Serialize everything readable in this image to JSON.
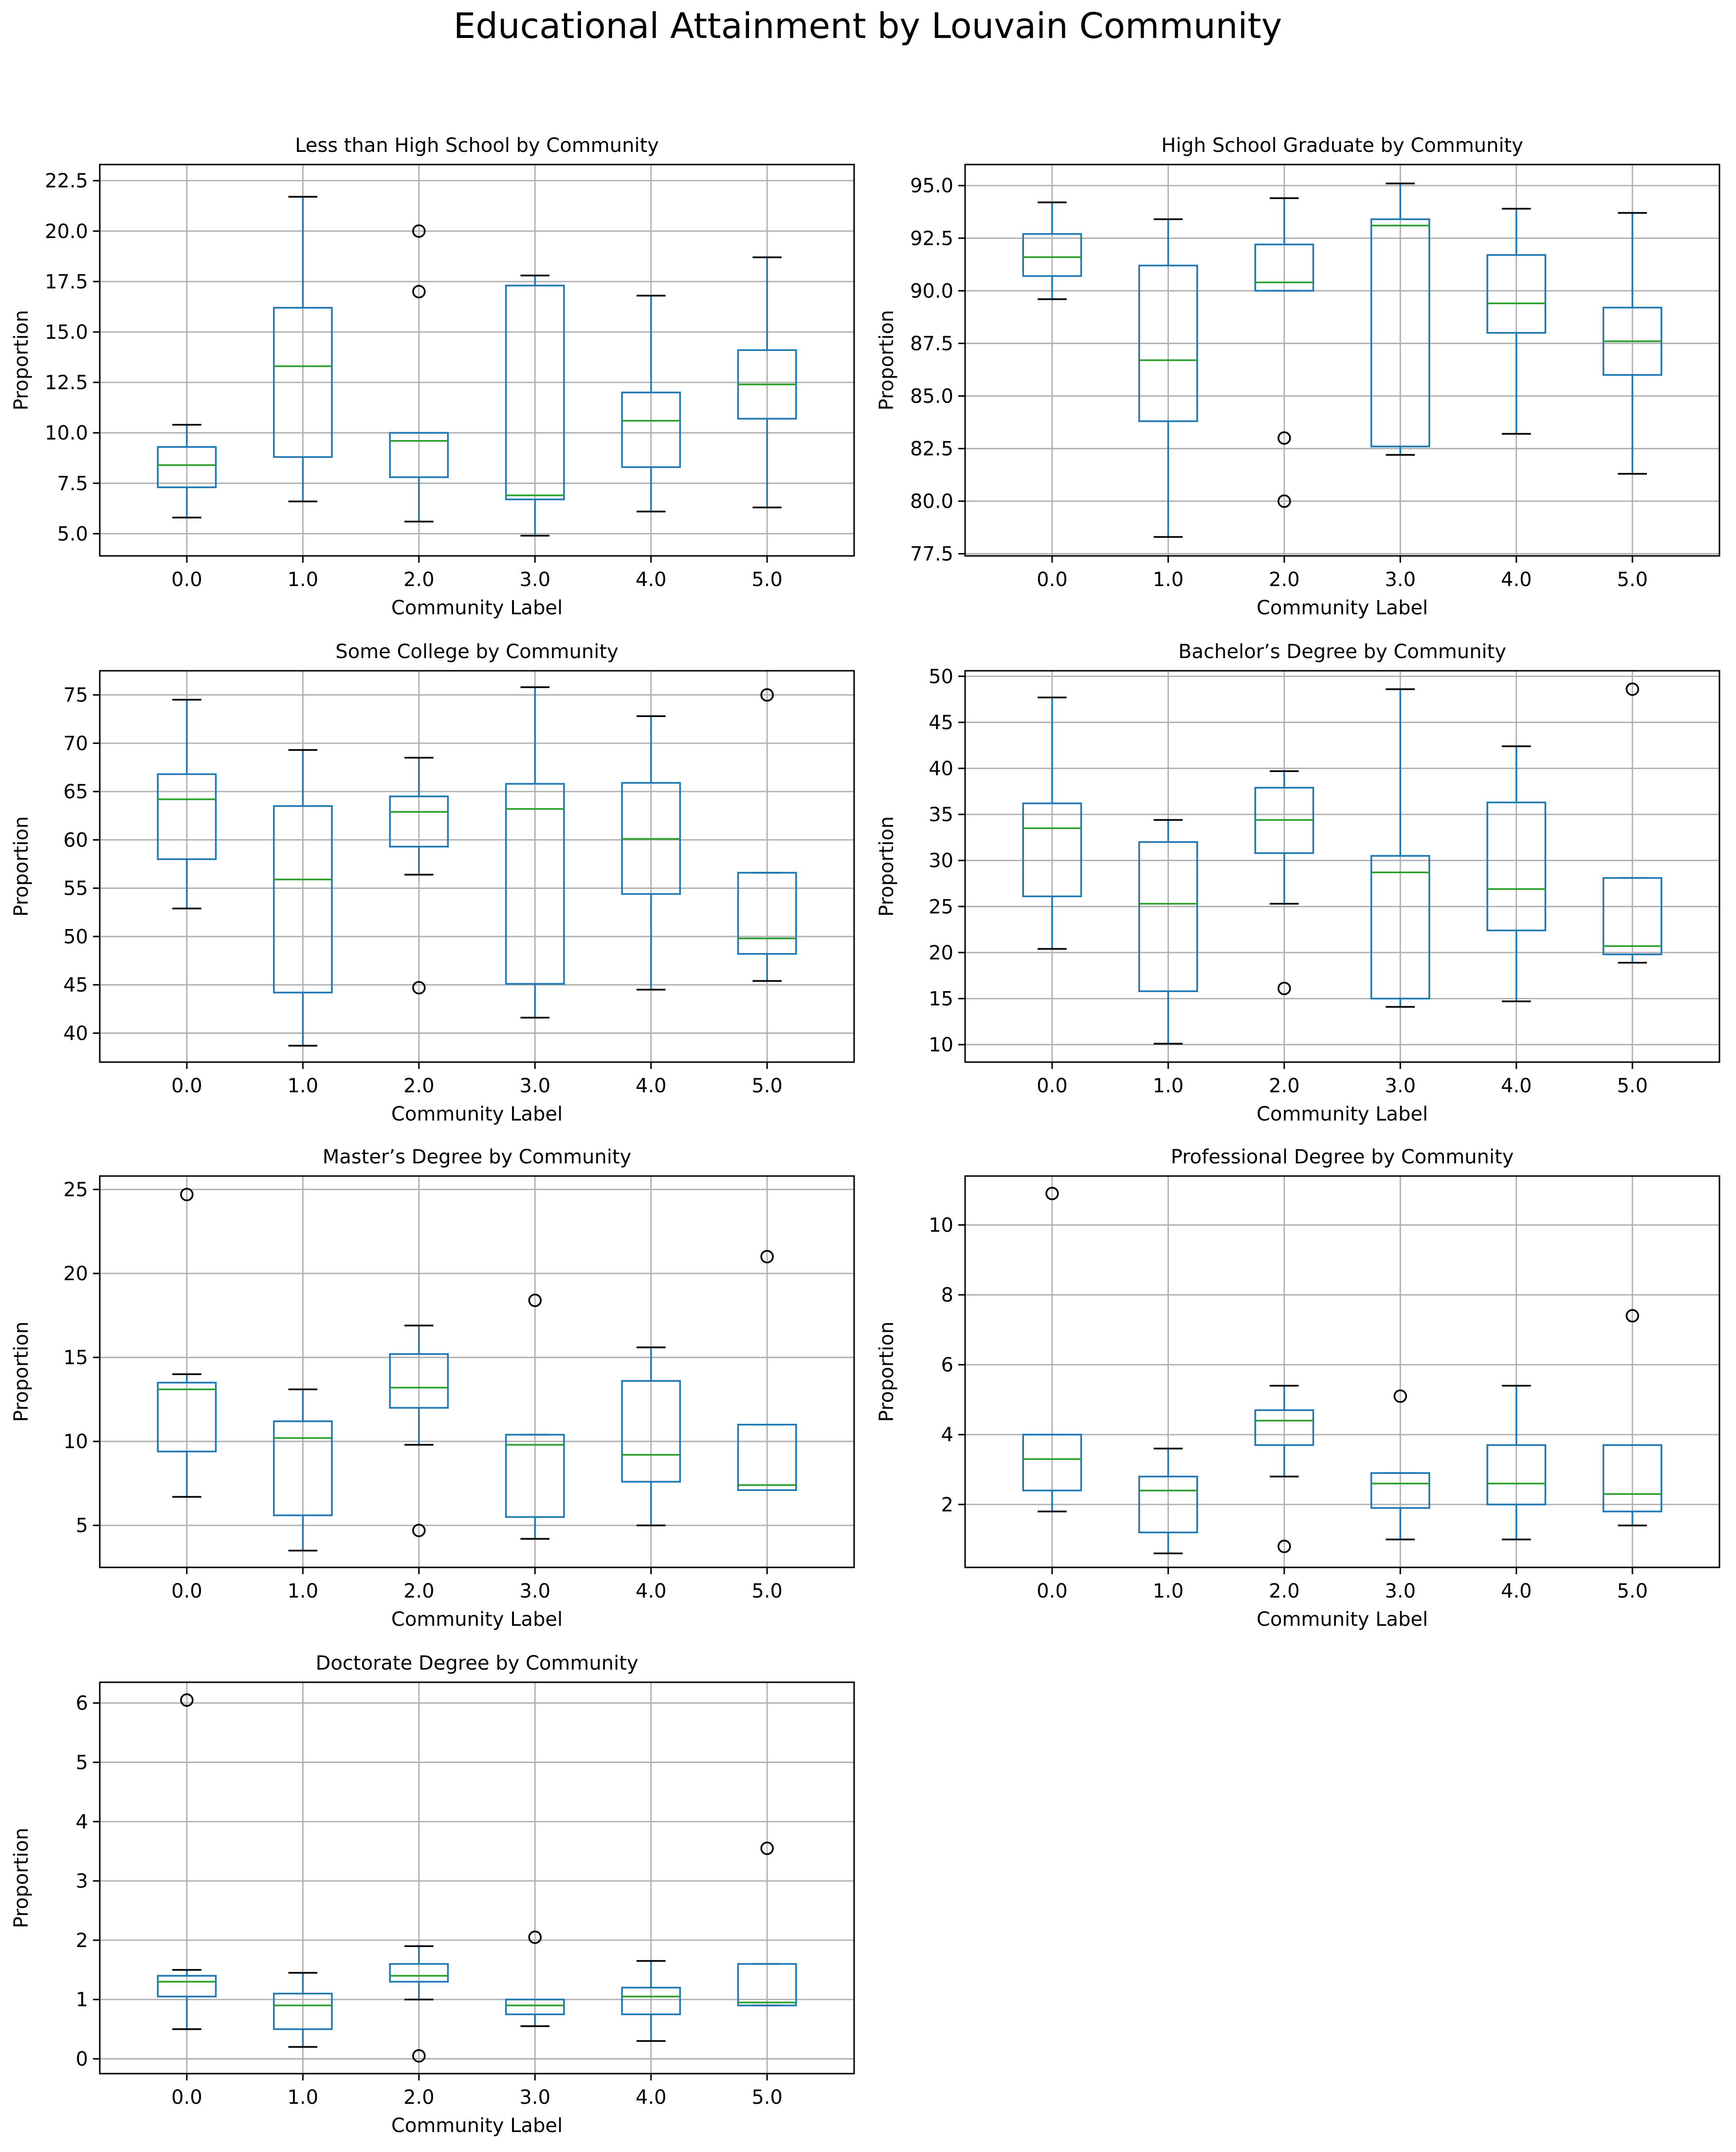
{
  "title": "Educational Attainment by Louvain Community",
  "colors": {
    "box": "#1f77b4",
    "median": "#2ca02c",
    "whisker": "#000000",
    "grid": "#b0b0b0",
    "axis": "#000000"
  },
  "chart_data": [
    {
      "type": "boxplot",
      "title": "Less than High School by Community",
      "xlabel": "Community Label",
      "ylabel": "Proportion",
      "categories": [
        "0.0",
        "1.0",
        "2.0",
        "3.0",
        "4.0",
        "5.0"
      ],
      "ylim": [
        3.9,
        23.3
      ],
      "yticks": [
        5.0,
        7.5,
        10.0,
        12.5,
        15.0,
        17.5,
        20.0,
        22.5
      ],
      "ytick_labels": [
        "5.0",
        "7.5",
        "10.0",
        "12.5",
        "15.0",
        "17.5",
        "20.0",
        "22.5"
      ],
      "grid": true,
      "boxes": [
        {
          "whislo": 5.8,
          "q1": 7.3,
          "med": 8.4,
          "q3": 9.3,
          "whishi": 10.4,
          "fliers": []
        },
        {
          "whislo": 6.6,
          "q1": 8.8,
          "med": 13.3,
          "q3": 16.2,
          "whishi": 21.7,
          "fliers": []
        },
        {
          "whislo": 5.6,
          "q1": 7.8,
          "med": 9.6,
          "q3": 10.0,
          "whishi": 10.0,
          "fliers": [
            17.0,
            20.0
          ]
        },
        {
          "whislo": 4.9,
          "q1": 6.7,
          "med": 6.9,
          "q3": 17.3,
          "whishi": 17.8,
          "fliers": []
        },
        {
          "whislo": 6.1,
          "q1": 8.3,
          "med": 10.6,
          "q3": 12.0,
          "whishi": 16.8,
          "fliers": []
        },
        {
          "whislo": 6.3,
          "q1": 10.7,
          "med": 12.4,
          "q3": 14.1,
          "whishi": 18.7,
          "fliers": []
        }
      ]
    },
    {
      "type": "boxplot",
      "title": "High School Graduate by Community",
      "xlabel": "Community Label",
      "ylabel": "Proportion",
      "categories": [
        "0.0",
        "1.0",
        "2.0",
        "3.0",
        "4.0",
        "5.0"
      ],
      "ylim": [
        77.4,
        96.0
      ],
      "yticks": [
        77.5,
        80.0,
        82.5,
        85.0,
        87.5,
        90.0,
        92.5,
        95.0
      ],
      "ytick_labels": [
        "77.5",
        "80.0",
        "82.5",
        "85.0",
        "87.5",
        "90.0",
        "92.5",
        "95.0"
      ],
      "grid": true,
      "boxes": [
        {
          "whislo": 89.6,
          "q1": 90.7,
          "med": 91.6,
          "q3": 92.7,
          "whishi": 94.2,
          "fliers": []
        },
        {
          "whislo": 78.3,
          "q1": 83.8,
          "med": 86.7,
          "q3": 91.2,
          "whishi": 93.4,
          "fliers": []
        },
        {
          "whislo": 90.0,
          "q1": 90.0,
          "med": 90.4,
          "q3": 92.2,
          "whishi": 94.4,
          "fliers": [
            80.0,
            83.0
          ]
        },
        {
          "whislo": 82.2,
          "q1": 82.6,
          "med": 93.1,
          "q3": 93.4,
          "whishi": 95.1,
          "fliers": []
        },
        {
          "whislo": 83.2,
          "q1": 88.0,
          "med": 89.4,
          "q3": 91.7,
          "whishi": 93.9,
          "fliers": []
        },
        {
          "whislo": 81.3,
          "q1": 86.0,
          "med": 87.6,
          "q3": 89.2,
          "whishi": 93.7,
          "fliers": []
        }
      ]
    },
    {
      "type": "boxplot",
      "title": "Some College by Community",
      "xlabel": "Community Label",
      "ylabel": "Proportion",
      "categories": [
        "0.0",
        "1.0",
        "2.0",
        "3.0",
        "4.0",
        "5.0"
      ],
      "ylim": [
        37.0,
        77.5
      ],
      "yticks": [
        40,
        45,
        50,
        55,
        60,
        65,
        70,
        75
      ],
      "ytick_labels": [
        "40",
        "45",
        "50",
        "55",
        "60",
        "65",
        "70",
        "75"
      ],
      "grid": true,
      "boxes": [
        {
          "whislo": 52.9,
          "q1": 58.0,
          "med": 64.2,
          "q3": 66.8,
          "whishi": 74.5,
          "fliers": []
        },
        {
          "whislo": 38.7,
          "q1": 44.2,
          "med": 55.9,
          "q3": 63.5,
          "whishi": 69.3,
          "fliers": []
        },
        {
          "whislo": 56.4,
          "q1": 59.3,
          "med": 62.9,
          "q3": 64.5,
          "whishi": 68.5,
          "fliers": [
            44.7
          ]
        },
        {
          "whislo": 41.6,
          "q1": 45.1,
          "med": 63.2,
          "q3": 65.8,
          "whishi": 75.8,
          "fliers": []
        },
        {
          "whislo": 44.5,
          "q1": 54.4,
          "med": 60.1,
          "q3": 65.9,
          "whishi": 72.8,
          "fliers": []
        },
        {
          "whislo": 45.4,
          "q1": 48.2,
          "med": 49.8,
          "q3": 56.6,
          "whishi": 56.6,
          "fliers": [
            75.0
          ]
        }
      ]
    },
    {
      "type": "boxplot",
      "title": "Bachelor’s Degree by Community",
      "xlabel": "Community Label",
      "ylabel": "Proportion",
      "categories": [
        "0.0",
        "1.0",
        "2.0",
        "3.0",
        "4.0",
        "5.0"
      ],
      "ylim": [
        8.1,
        50.6
      ],
      "yticks": [
        10,
        15,
        20,
        25,
        30,
        35,
        40,
        45,
        50
      ],
      "ytick_labels": [
        "10",
        "15",
        "20",
        "25",
        "30",
        "35",
        "40",
        "45",
        "50"
      ],
      "grid": true,
      "boxes": [
        {
          "whislo": 20.4,
          "q1": 26.1,
          "med": 33.5,
          "q3": 36.2,
          "whishi": 47.7,
          "fliers": []
        },
        {
          "whislo": 10.1,
          "q1": 15.8,
          "med": 25.3,
          "q3": 32.0,
          "whishi": 34.4,
          "fliers": []
        },
        {
          "whislo": 25.3,
          "q1": 30.8,
          "med": 34.4,
          "q3": 37.9,
          "whishi": 39.7,
          "fliers": [
            16.1
          ]
        },
        {
          "whislo": 14.1,
          "q1": 15.0,
          "med": 28.7,
          "q3": 30.5,
          "whishi": 48.6,
          "fliers": []
        },
        {
          "whislo": 14.7,
          "q1": 22.4,
          "med": 26.9,
          "q3": 36.3,
          "whishi": 42.4,
          "fliers": []
        },
        {
          "whislo": 18.9,
          "q1": 19.8,
          "med": 20.7,
          "q3": 28.1,
          "whishi": 28.1,
          "fliers": [
            48.6
          ]
        }
      ]
    },
    {
      "type": "boxplot",
      "title": "Master’s Degree by Community",
      "xlabel": "Community Label",
      "ylabel": "Proportion",
      "categories": [
        "0.0",
        "1.0",
        "2.0",
        "3.0",
        "4.0",
        "5.0"
      ],
      "ylim": [
        2.5,
        25.8
      ],
      "yticks": [
        5,
        10,
        15,
        20,
        25
      ],
      "ytick_labels": [
        "5",
        "10",
        "15",
        "20",
        "25"
      ],
      "grid": true,
      "boxes": [
        {
          "whislo": 6.7,
          "q1": 9.4,
          "med": 13.1,
          "q3": 13.5,
          "whishi": 14.0,
          "fliers": [
            24.7
          ]
        },
        {
          "whislo": 3.5,
          "q1": 5.6,
          "med": 10.2,
          "q3": 11.2,
          "whishi": 13.1,
          "fliers": []
        },
        {
          "whislo": 9.8,
          "q1": 12.0,
          "med": 13.2,
          "q3": 15.2,
          "whishi": 16.9,
          "fliers": [
            4.7
          ]
        },
        {
          "whislo": 4.2,
          "q1": 5.5,
          "med": 9.8,
          "q3": 10.4,
          "whishi": 10.4,
          "fliers": [
            18.4
          ]
        },
        {
          "whislo": 5.0,
          "q1": 7.6,
          "med": 9.2,
          "q3": 13.6,
          "whishi": 15.6,
          "fliers": []
        },
        {
          "whislo": 7.1,
          "q1": 7.1,
          "med": 7.4,
          "q3": 11.0,
          "whishi": 11.0,
          "fliers": [
            21.0
          ]
        }
      ]
    },
    {
      "type": "boxplot",
      "title": "Professional Degree by Community",
      "xlabel": "Community Label",
      "ylabel": "Proportion",
      "categories": [
        "0.0",
        "1.0",
        "2.0",
        "3.0",
        "4.0",
        "5.0"
      ],
      "ylim": [
        0.2,
        11.4
      ],
      "yticks": [
        2,
        4,
        6,
        8,
        10
      ],
      "ytick_labels": [
        "2",
        "4",
        "6",
        "8",
        "10"
      ],
      "grid": true,
      "boxes": [
        {
          "whislo": 1.8,
          "q1": 2.4,
          "med": 3.3,
          "q3": 4.0,
          "whishi": 4.0,
          "fliers": [
            10.9
          ]
        },
        {
          "whislo": 0.6,
          "q1": 1.2,
          "med": 2.4,
          "q3": 2.8,
          "whishi": 3.6,
          "fliers": []
        },
        {
          "whislo": 2.8,
          "q1": 3.7,
          "med": 4.4,
          "q3": 4.7,
          "whishi": 5.4,
          "fliers": [
            0.8
          ]
        },
        {
          "whislo": 1.0,
          "q1": 1.9,
          "med": 2.6,
          "q3": 2.9,
          "whishi": 2.9,
          "fliers": [
            5.1
          ]
        },
        {
          "whislo": 1.0,
          "q1": 2.0,
          "med": 2.6,
          "q3": 3.7,
          "whishi": 5.4,
          "fliers": []
        },
        {
          "whislo": 1.4,
          "q1": 1.8,
          "med": 2.3,
          "q3": 3.7,
          "whishi": 3.7,
          "fliers": [
            7.4
          ]
        }
      ]
    },
    {
      "type": "boxplot",
      "title": "Doctorate Degree by Community",
      "xlabel": "Community Label",
      "ylabel": "Proportion",
      "categories": [
        "0.0",
        "1.0",
        "2.0",
        "3.0",
        "4.0",
        "5.0"
      ],
      "ylim": [
        -0.25,
        6.35
      ],
      "yticks": [
        0,
        1,
        2,
        3,
        4,
        5,
        6
      ],
      "ytick_labels": [
        "0",
        "1",
        "2",
        "3",
        "4",
        "5",
        "6"
      ],
      "grid": true,
      "boxes": [
        {
          "whislo": 0.5,
          "q1": 1.05,
          "med": 1.3,
          "q3": 1.4,
          "whishi": 1.5,
          "fliers": [
            6.05
          ]
        },
        {
          "whislo": 0.2,
          "q1": 0.5,
          "med": 0.9,
          "q3": 1.1,
          "whishi": 1.45,
          "fliers": []
        },
        {
          "whislo": 1.0,
          "q1": 1.3,
          "med": 1.4,
          "q3": 1.6,
          "whishi": 1.9,
          "fliers": [
            0.05
          ]
        },
        {
          "whislo": 0.55,
          "q1": 0.75,
          "med": 0.9,
          "q3": 1.0,
          "whishi": 1.0,
          "fliers": [
            2.05
          ]
        },
        {
          "whislo": 0.3,
          "q1": 0.75,
          "med": 1.05,
          "q3": 1.2,
          "whishi": 1.65,
          "fliers": []
        },
        {
          "whislo": 0.9,
          "q1": 0.9,
          "med": 0.95,
          "q3": 1.6,
          "whishi": 1.6,
          "fliers": [
            3.55
          ]
        }
      ]
    }
  ]
}
